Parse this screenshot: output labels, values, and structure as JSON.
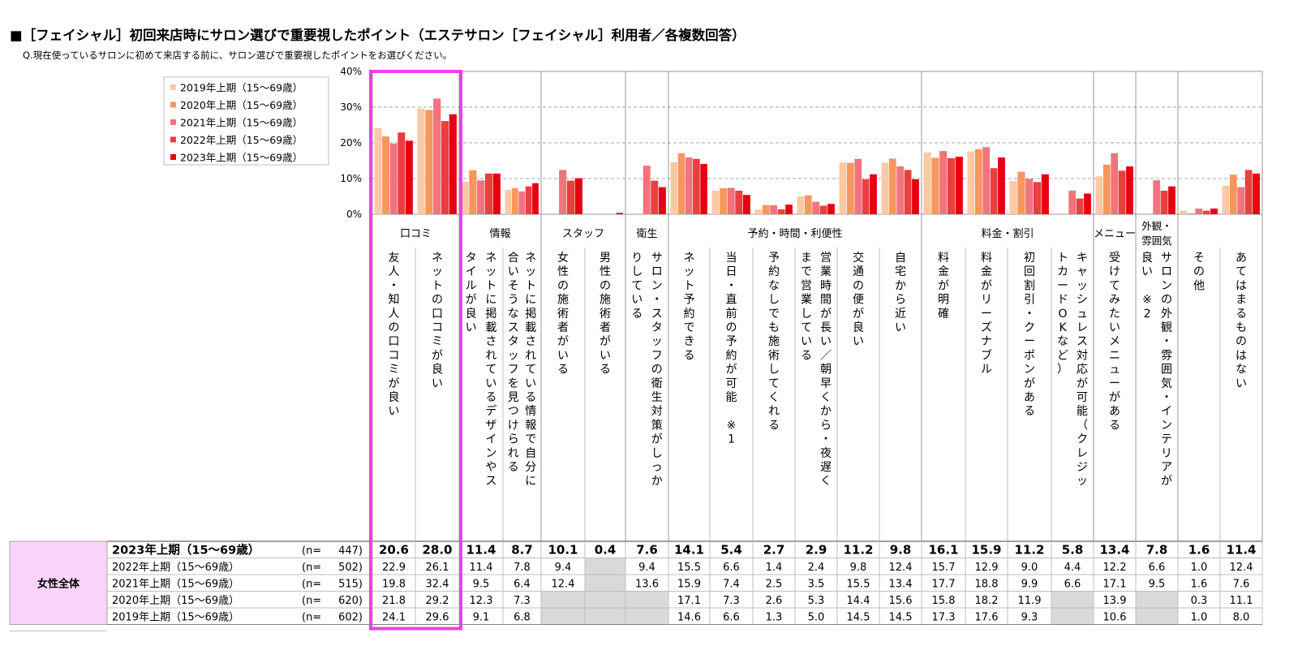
{
  "title": "■［フェイシャル］初回来店時にサロン選びで重要視したポイント（エステサロン［フェイシャル］利用者／各複数回答）",
  "question": "Q.現在使っているサロンに初めて来店する前に、サロン選びで重要視したポイントをお選びください。",
  "chart_data": {
    "type": "bar",
    "yticks": [
      "40%",
      "30%",
      "20%",
      "10%",
      "0%"
    ],
    "ylim": [
      0,
      40
    ],
    "grid": true,
    "legend_position": "top-left",
    "categories": [
      "友人・知人の口コミが良い",
      "ネットの口コミが良い",
      "ネットに掲載されているデザインやスタイルが良い",
      "ネットに掲載されている情報で自分に合いそうなスタッフを見つけられる",
      "女性の施術者がいる",
      "男性の施術者がいる",
      "サロン・スタッフの衛生対策がしっかりしている",
      "ネット予約できる",
      "当日・直前の予約が可能　※1",
      "予約なしでも施術してくれる",
      "営業時間が長い／朝早くから・夜遅くまで営業している",
      "交通の便が良い",
      "自宅から近い",
      "料金が明確",
      "料金がリーズナブル",
      "初回割引・クーポンがある",
      "キャッシュレス対応が可能（クレジットカードOKなど）",
      "受けてみたいメニューがある",
      "サロンの外観・雰囲気・インテリアが良い　※2",
      "その他",
      "あてはまるものはない"
    ],
    "category_vertical_text": [
      [
        "友人・知人の口コミが良い"
      ],
      [
        "ネットの口コミが良い"
      ],
      [
        "ネットに掲載されているデザインやス",
        "タイルが良い"
      ],
      [
        "ネットに掲載されている情報で自分に",
        "合いそうなスタッフを見つけられる"
      ],
      [
        "女性の施術者がいる"
      ],
      [
        "男性の施術者がいる"
      ],
      [
        "サロン・スタッフの衛生対策がしっか",
        "りしている"
      ],
      [
        "ネット予約できる"
      ],
      [
        "当日・直前の予約が可能　※1"
      ],
      [
        "予約なしでも施術してくれる"
      ],
      [
        "営業時間が長い／朝早くから・夜遅く",
        "まで営業している"
      ],
      [
        "交通の便が良い"
      ],
      [
        "自宅から近い"
      ],
      [
        "料金が明確"
      ],
      [
        "料金がリーズナブル"
      ],
      [
        "初回割引・クーポンがある"
      ],
      [
        "キャッシュレス対応が可能（クレジッ",
        "トカードOKなど）"
      ],
      [
        "受けてみたいメニューがある"
      ],
      [
        "サロンの外観・雰囲気・インテリアが",
        "良い　※2"
      ],
      [
        "その他"
      ],
      [
        "あてはまるものはない"
      ]
    ],
    "groups": [
      {
        "label": "口コミ",
        "start": 0,
        "end": 1
      },
      {
        "label": "情報",
        "start": 2,
        "end": 3
      },
      {
        "label": "スタッフ",
        "start": 4,
        "end": 5
      },
      {
        "label": "衛生",
        "start": 6,
        "end": 6
      },
      {
        "label": "予約・時間・利便性",
        "start": 7,
        "end": 12
      },
      {
        "label": "料金・割引",
        "start": 13,
        "end": 16
      },
      {
        "label": "メニュー",
        "start": 17,
        "end": 17
      },
      {
        "label": "外観・雰囲気",
        "start": 18,
        "end": 18
      },
      {
        "label": "",
        "start": 19,
        "end": 20
      }
    ],
    "series": [
      {
        "name": "2019年上期（15～69歳）",
        "color": "#FBC9A3",
        "values": [
          24.1,
          29.6,
          9.1,
          6.8,
          null,
          null,
          null,
          14.6,
          6.6,
          1.3,
          5.0,
          14.5,
          14.5,
          17.3,
          17.6,
          9.3,
          null,
          10.6,
          null,
          1.0,
          8.0
        ]
      },
      {
        "name": "2020年上期（15～69歳）",
        "color": "#F7965F",
        "values": [
          21.8,
          29.2,
          12.3,
          7.3,
          null,
          null,
          null,
          17.1,
          7.3,
          2.6,
          5.3,
          14.4,
          15.6,
          15.8,
          18.2,
          11.9,
          null,
          13.9,
          null,
          0.3,
          11.1
        ]
      },
      {
        "name": "2021年上期（15～69歳）",
        "color": "#F2737F",
        "values": [
          19.8,
          32.4,
          9.5,
          6.4,
          12.4,
          null,
          13.6,
          15.9,
          7.4,
          2.5,
          3.5,
          15.5,
          13.4,
          17.7,
          18.8,
          9.9,
          6.6,
          17.1,
          9.5,
          1.6,
          7.6
        ]
      },
      {
        "name": "2022年上期（15～69歳）",
        "color": "#E8403F",
        "values": [
          22.9,
          26.1,
          11.4,
          7.8,
          9.4,
          null,
          9.4,
          15.5,
          6.6,
          1.4,
          2.4,
          9.8,
          12.4,
          15.7,
          12.9,
          9.0,
          4.4,
          12.2,
          6.6,
          1.0,
          12.4
        ]
      },
      {
        "name": "2023年上期（15～69歳）",
        "color": "#E60012",
        "values": [
          20.6,
          28.0,
          11.4,
          8.7,
          10.1,
          0.4,
          7.6,
          14.1,
          5.4,
          2.7,
          2.9,
          11.2,
          9.8,
          16.1,
          15.9,
          11.2,
          5.8,
          13.4,
          7.8,
          1.6,
          11.4
        ]
      }
    ],
    "table": {
      "group_label": "女性全体",
      "rows": [
        {
          "label": "2023年上期（15～69歳）",
          "n_label": "(n=",
          "n": "447)",
          "bold": true,
          "values": [
            "20.6",
            "28.0",
            "11.4",
            "8.7",
            "10.1",
            "0.4",
            "7.6",
            "14.1",
            "5.4",
            "2.7",
            "2.9",
            "11.2",
            "9.8",
            "16.1",
            "15.9",
            "11.2",
            "5.8",
            "13.4",
            "7.8",
            "1.6",
            "11.4"
          ]
        },
        {
          "label": "2022年上期（15～69歳）",
          "n_label": "(n=",
          "n": "502)",
          "bold": false,
          "values": [
            "22.9",
            "26.1",
            "11.4",
            "7.8",
            "9.4",
            "",
            "9.4",
            "15.5",
            "6.6",
            "1.4",
            "2.4",
            "9.8",
            "12.4",
            "15.7",
            "12.9",
            "9.0",
            "4.4",
            "12.2",
            "6.6",
            "1.0",
            "12.4"
          ]
        },
        {
          "label": "2021年上期（15～69歳）",
          "n_label": "(n=",
          "n": "515)",
          "bold": false,
          "values": [
            "19.8",
            "32.4",
            "9.5",
            "6.4",
            "12.4",
            "",
            "13.6",
            "15.9",
            "7.4",
            "2.5",
            "3.5",
            "15.5",
            "13.4",
            "17.7",
            "18.8",
            "9.9",
            "6.6",
            "17.1",
            "9.5",
            "1.6",
            "7.6"
          ]
        },
        {
          "label": "2020年上期（15～69歳）",
          "n_label": "(n=",
          "n": "620)",
          "bold": false,
          "values": [
            "21.8",
            "29.2",
            "12.3",
            "7.3",
            "",
            "",
            "",
            "17.1",
            "7.3",
            "2.6",
            "5.3",
            "14.4",
            "15.6",
            "15.8",
            "18.2",
            "11.9",
            "",
            "13.9",
            "",
            "0.3",
            "11.1"
          ]
        },
        {
          "label": "2019年上期（15～69歳）",
          "n_label": "(n=",
          "n": "602)",
          "bold": false,
          "values": [
            "24.1",
            "29.6",
            "9.1",
            "6.8",
            "",
            "",
            "",
            "14.6",
            "6.6",
            "1.3",
            "5.0",
            "14.5",
            "14.5",
            "17.3",
            "17.6",
            "9.3",
            "",
            "10.6",
            "",
            "1.0",
            "8.0"
          ]
        }
      ],
      "shaded_cells": [
        [
          1,
          5
        ],
        [
          2,
          5
        ],
        [
          3,
          4
        ],
        [
          3,
          5
        ],
        [
          3,
          6
        ],
        [
          3,
          16
        ],
        [
          3,
          18
        ],
        [
          4,
          4
        ],
        [
          4,
          5
        ],
        [
          4,
          6
        ],
        [
          4,
          16
        ],
        [
          4,
          18
        ]
      ]
    },
    "highlight": {
      "start": 0,
      "end": 1,
      "color": "#F23CF0"
    },
    "colors": {
      "grid_line": "#A6A6A6",
      "table_header_bg": "#F9D3F8",
      "shade": "#D9D9D9",
      "axis_border": "#9A9A9A"
    }
  }
}
